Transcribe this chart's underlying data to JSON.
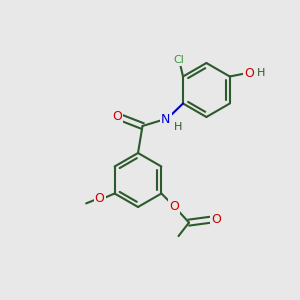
{
  "bg_color": "#e8e8e8",
  "bond_color": "#2d5a2d",
  "bond_lw": 1.5,
  "atom_colors": {
    "C": "#2d5a2d",
    "N": "#0000cc",
    "O": "#cc0000",
    "Cl": "#3a9a3a",
    "H": "#2d5a2d"
  },
  "font_size": 9,
  "font_size_small": 8
}
